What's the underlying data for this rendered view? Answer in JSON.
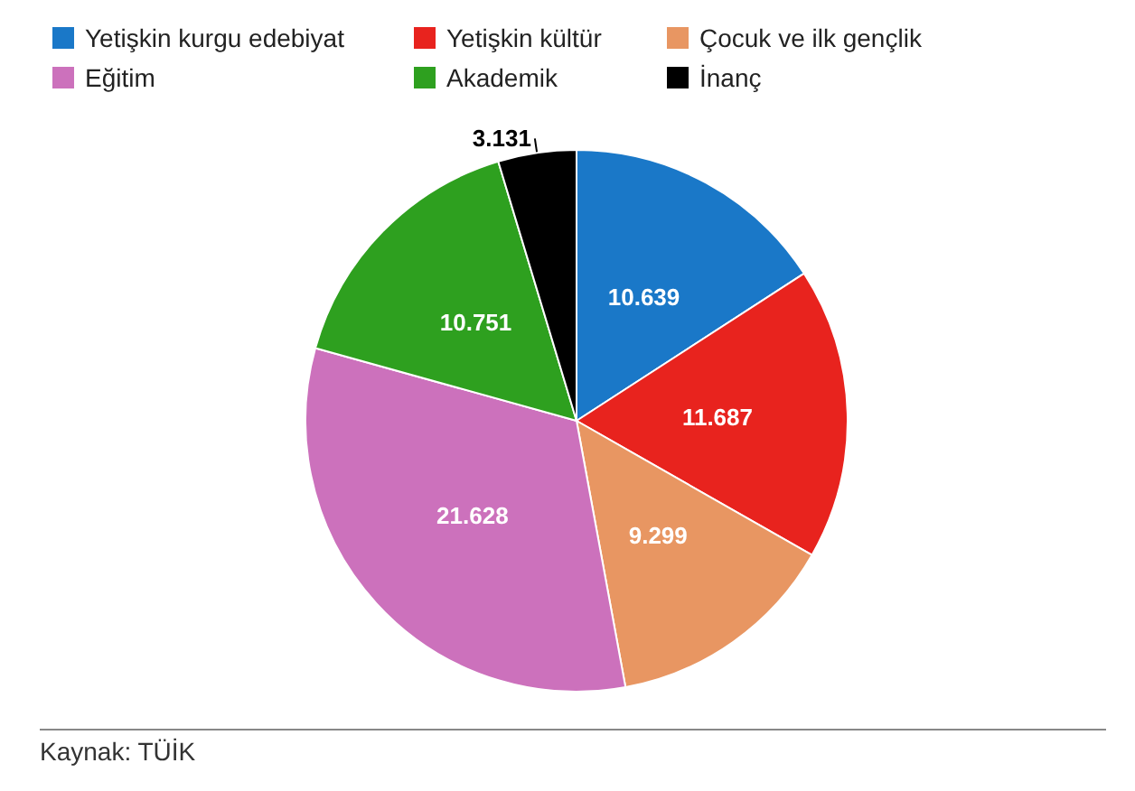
{
  "chart_data": {
    "type": "pie",
    "categories": [
      "Yetişkin kurgu edebiyat",
      "Yetişkin kültür",
      "Çocuk ve ilk gençlik",
      "Eğitim",
      "Akademik",
      "İnanç"
    ],
    "values": [
      10639,
      11687,
      9299,
      21628,
      10751,
      3131
    ],
    "value_labels": [
      "10.639",
      "11.687",
      "9.299",
      "21.628",
      "10.751",
      "3.131"
    ],
    "colors": [
      "#1a78c8",
      "#e8231e",
      "#e89662",
      "#cc71bc",
      "#2ea01f",
      "#000000"
    ],
    "legend": "top",
    "annotations": [
      "Kaynak: TÜİK"
    ]
  }
}
